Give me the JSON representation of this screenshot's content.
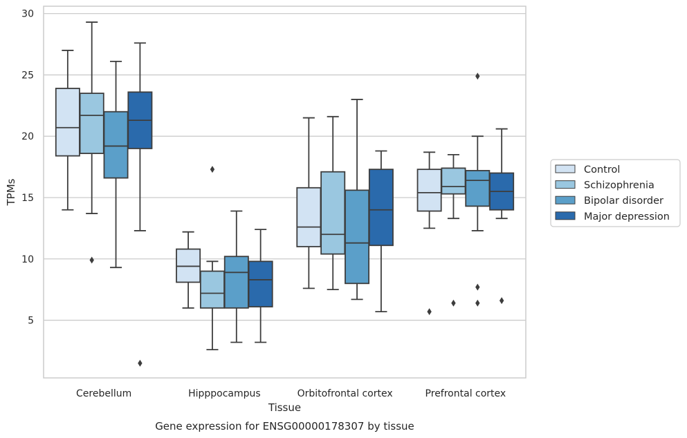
{
  "chart_data": {
    "type": "box",
    "caption": "Gene expression for ENSG00000178307 by tissue",
    "xlabel": "Tissue",
    "ylabel": "TPMs",
    "ylim": [
      0.3,
      30.6
    ],
    "yticks": [
      5,
      10,
      15,
      20,
      25,
      30
    ],
    "grid": "horizontal",
    "legend_position": "right",
    "categories": [
      "Cerebellum",
      "Hipppocampus",
      "Orbitofrontal cortex",
      "Prefrontal cortex"
    ],
    "series": [
      {
        "name": "Control",
        "color": "#d2e3f3",
        "boxes": [
          {
            "whislo": 14.0,
            "q1": 18.4,
            "med": 20.7,
            "q3": 23.9,
            "whishi": 27.0,
            "fliers": []
          },
          {
            "whislo": 6.0,
            "q1": 8.1,
            "med": 9.4,
            "q3": 10.8,
            "whishi": 12.2,
            "fliers": []
          },
          {
            "whislo": 7.6,
            "q1": 11.0,
            "med": 12.6,
            "q3": 15.8,
            "whishi": 21.5,
            "fliers": []
          },
          {
            "whislo": 12.5,
            "q1": 13.9,
            "med": 15.4,
            "q3": 17.3,
            "whishi": 18.7,
            "fliers": [
              5.7
            ]
          }
        ]
      },
      {
        "name": "Schizophrenia",
        "color": "#9ac7e0",
        "boxes": [
          {
            "whislo": 13.7,
            "q1": 18.6,
            "med": 21.7,
            "q3": 23.5,
            "whishi": 29.3,
            "fliers": [
              9.9
            ]
          },
          {
            "whislo": 2.6,
            "q1": 6.0,
            "med": 7.2,
            "q3": 9.0,
            "whishi": 9.8,
            "fliers": [
              17.3
            ]
          },
          {
            "whislo": 7.5,
            "q1": 10.4,
            "med": 12.0,
            "q3": 17.1,
            "whishi": 21.6,
            "fliers": []
          },
          {
            "whislo": 13.3,
            "q1": 15.3,
            "med": 15.9,
            "q3": 17.4,
            "whishi": 18.5,
            "fliers": [
              6.4
            ]
          }
        ]
      },
      {
        "name": "Bipolar disorder",
        "color": "#5b9fc9",
        "boxes": [
          {
            "whislo": 9.3,
            "q1": 16.6,
            "med": 19.2,
            "q3": 22.0,
            "whishi": 26.1,
            "fliers": []
          },
          {
            "whislo": 3.2,
            "q1": 6.0,
            "med": 8.9,
            "q3": 10.2,
            "whishi": 13.9,
            "fliers": []
          },
          {
            "whislo": 6.7,
            "q1": 8.0,
            "med": 11.3,
            "q3": 15.6,
            "whishi": 23.0,
            "fliers": []
          },
          {
            "whislo": 12.3,
            "q1": 14.3,
            "med": 16.4,
            "q3": 17.2,
            "whishi": 20.0,
            "fliers": [
              24.9,
              7.7,
              6.4
            ]
          }
        ]
      },
      {
        "name": "Major depression",
        "color": "#2a6aac",
        "boxes": [
          {
            "whislo": 12.3,
            "q1": 19.0,
            "med": 21.3,
            "q3": 23.6,
            "whishi": 27.6,
            "fliers": [
              1.5
            ]
          },
          {
            "whislo": 3.2,
            "q1": 6.1,
            "med": 8.3,
            "q3": 9.8,
            "whishi": 12.4,
            "fliers": []
          },
          {
            "whislo": 5.7,
            "q1": 11.1,
            "med": 14.0,
            "q3": 17.3,
            "whishi": 18.8,
            "fliers": []
          },
          {
            "whislo": 13.3,
            "q1": 14.0,
            "med": 15.5,
            "q3": 17.0,
            "whishi": 20.6,
            "fliers": [
              6.6
            ]
          }
        ]
      }
    ]
  }
}
